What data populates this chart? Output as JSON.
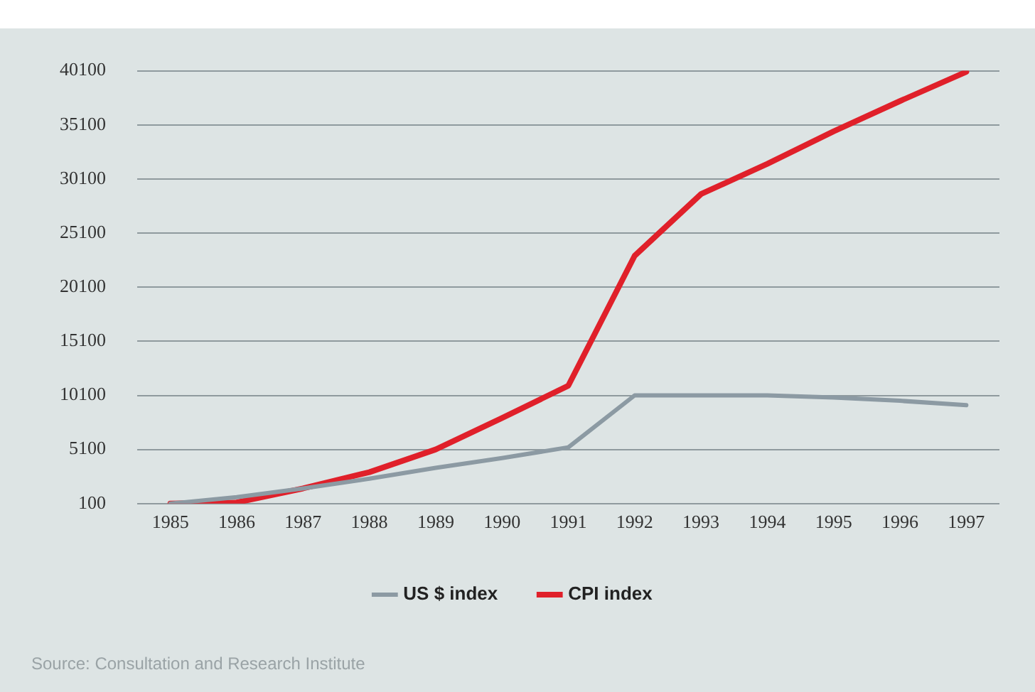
{
  "chart_data": {
    "type": "line",
    "categories": [
      "1985",
      "1986",
      "1987",
      "1988",
      "1989",
      "1990",
      "1991",
      "1992",
      "1993",
      "1994",
      "1995",
      "1996",
      "1997"
    ],
    "series": [
      {
        "name": "US $ index",
        "color": "#8c9aa3",
        "values": [
          100,
          700,
          1500,
          2400,
          3400,
          4300,
          5300,
          10100,
          10100,
          10100,
          9900,
          9600,
          9200
        ]
      },
      {
        "name": "CPI index",
        "color": "#e0202a",
        "values": [
          100,
          200,
          1500,
          3000,
          5100,
          8000,
          11000,
          23000,
          28700,
          31500,
          34500,
          37300,
          40000
        ]
      }
    ],
    "ylim": [
      100,
      40100
    ],
    "yticks": [
      100,
      5100,
      10100,
      15100,
      20100,
      25100,
      30100,
      35100,
      40100
    ],
    "grid": "y",
    "legend": "bottom",
    "marker": "none",
    "line_style": "solid",
    "annotations": [
      "Source: Consultation and Research Institute"
    ]
  }
}
